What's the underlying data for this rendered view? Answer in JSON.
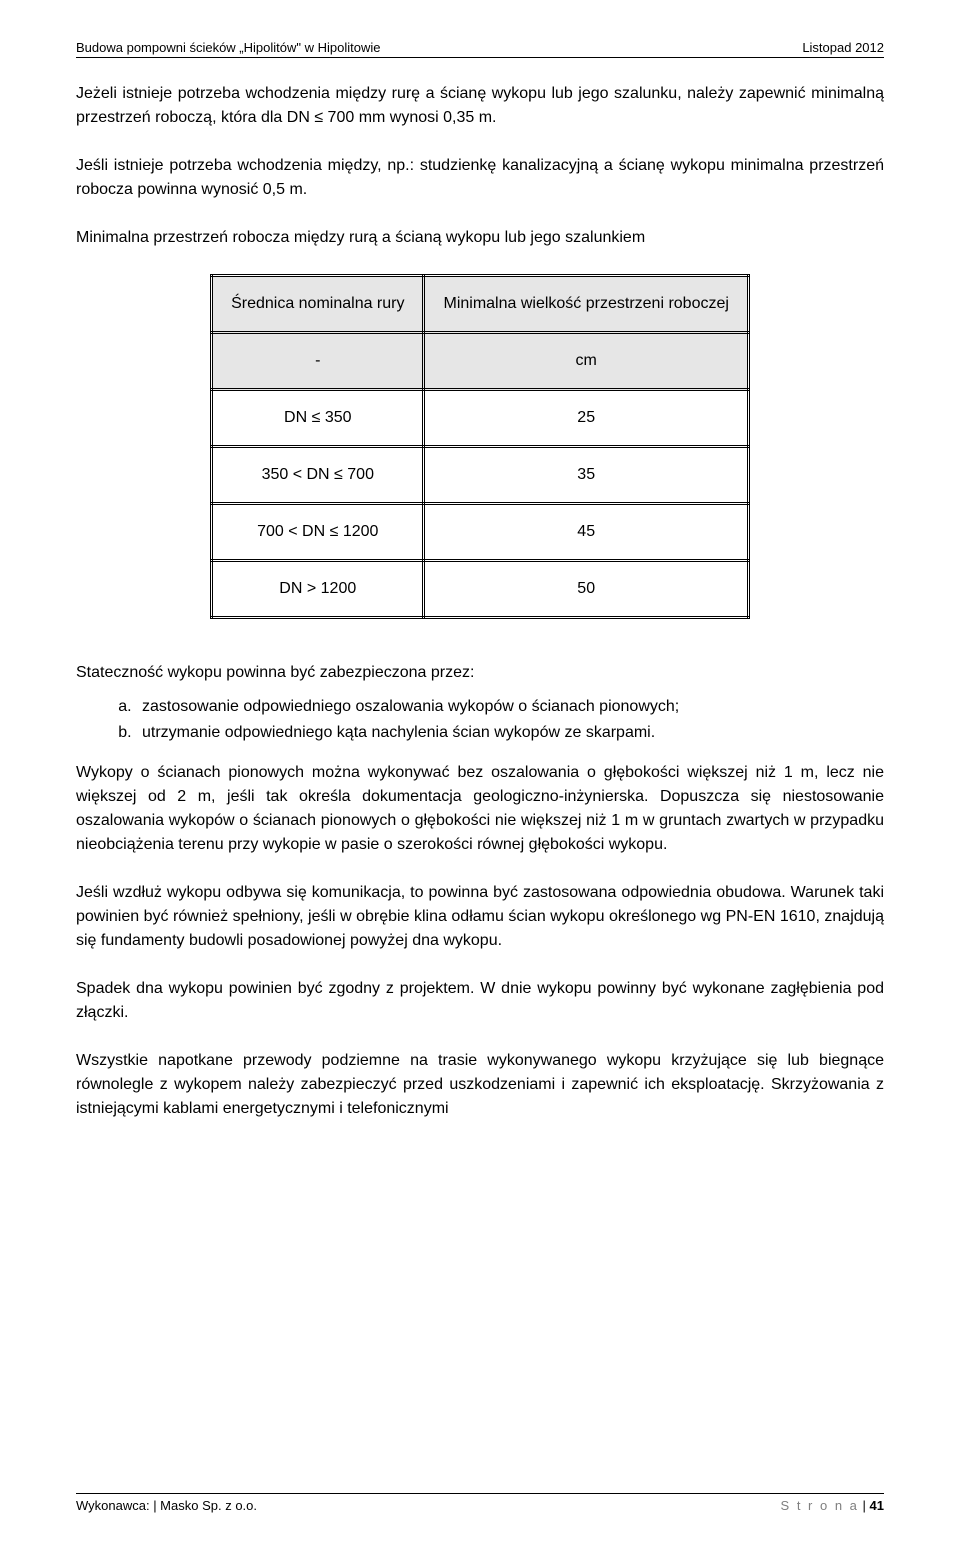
{
  "header": {
    "left": "Budowa pompowni ścieków „Hipolitów\" w Hipolitowie",
    "right": "Listopad 2012"
  },
  "paragraphs": {
    "p1": "Jeżeli istnieje potrzeba wchodzenia między rurę a ścianę wykopu lub jego szalunku, należy zapewnić minimalną przestrzeń roboczą, która dla DN ≤ 700 mm wynosi 0,35 m.",
    "p2": "Jeśli istnieje potrzeba wchodzenia między, np.: studzienkę kanalizacyjną a ścianę wykopu minimalna przestrzeń robocza powinna wynosić 0,5 m.",
    "p3": "Minimalna przestrzeń robocza między rurą a ścianą wykopu lub jego szalunkiem",
    "list_intro": "Stateczność wykopu powinna być zabezpieczona przez:",
    "p4": "Wykopy o ścianach pionowych można wykonywać bez oszalowania o głębokości większej niż 1 m, lecz nie większej od 2 m, jeśli tak określa dokumentacja geologiczno-inżynierska. Dopuszcza się niestosowanie oszalowania wykopów o ścianach pionowych o głębokości nie większej niż 1 m w gruntach zwartych w przypadku nieobciążenia terenu przy wykopie w pasie o szerokości równej głębokości wykopu.",
    "p5": "Jeśli wzdłuż wykopu odbywa się komunikacja, to powinna być zastosowana odpowiednia obudowa. Warunek taki powinien być również spełniony, jeśli w obrębie klina odłamu ścian wykopu określonego wg PN-EN 1610, znajdują się fundamenty budowli posadowionej powyżej dna wykopu.",
    "p6": "Spadek dna wykopu powinien być zgodny z projektem. W dnie wykopu powinny być wykonane zagłębienia pod złączki.",
    "p7": "Wszystkie napotkane przewody podziemne na trasie wykonywanego wykopu krzyżujące się lub biegnące równolegle z wykopem należy zabezpieczyć przed uszkodzeniami i zapewnić ich eksploatację. Skrzyżowania z istniejącymi kablami energetycznymi i telefonicznymi"
  },
  "list": {
    "a": "zastosowanie odpowiedniego oszalowania wykopów o ścianach pionowych;",
    "b": "utrzymanie odpowiedniego kąta nachylenia ścian wykopów ze skarpami."
  },
  "table": {
    "head_left": "Średnica nominalna rury",
    "head_right": "Minimalna wielkość przestrzeni roboczej",
    "unit_left": "-",
    "unit_right": "cm",
    "rows": [
      {
        "left": "DN ≤ 350",
        "right": "25"
      },
      {
        "left": "350 < DN ≤ 700",
        "right": "35"
      },
      {
        "left": "700 < DN ≤ 1200",
        "right": "45"
      },
      {
        "left": "DN > 1200",
        "right": "50"
      }
    ]
  },
  "footer": {
    "left": "Wykonawca: | Masko Sp. z o.o.",
    "page_label": "S t r o n a",
    "page_sep": " | ",
    "page_num": "41"
  }
}
